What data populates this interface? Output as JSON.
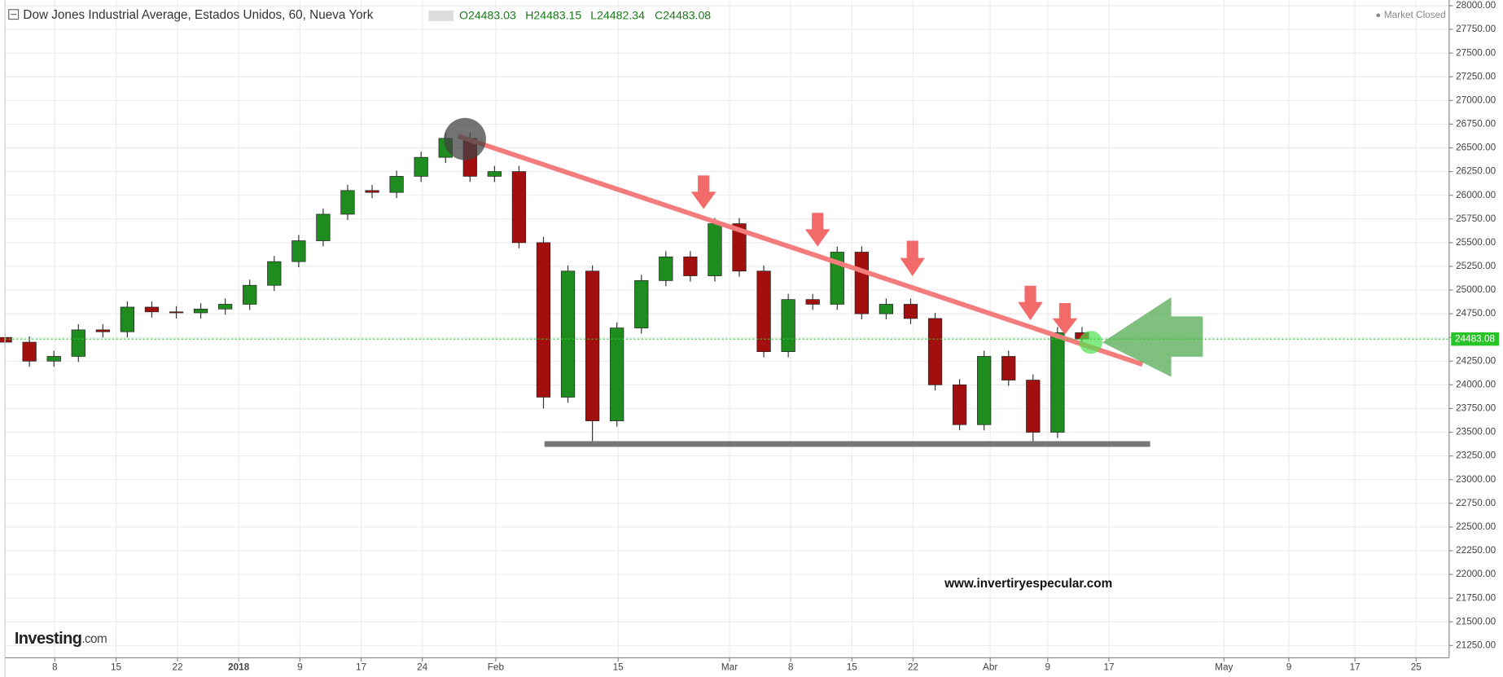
{
  "chart_data": {
    "type": "candlestick",
    "title": "Dow Jones Industrial Average, Estados Unidos, 60, Nueva York",
    "ohlc_labels": [
      "O24483.03",
      "H24483.15",
      "L24482.34",
      "C24483.08"
    ],
    "status": "Market Closed",
    "watermark": "www.invertiryespecular.com",
    "logo": "Investing",
    "logo_suffix": ".com",
    "current_price": 24483.08,
    "current_price_label": "24483.08",
    "up_color": "#1e8c1e",
    "down_color": "#a30f0f",
    "grid": true,
    "x": [
      0,
      2,
      4,
      6,
      8,
      10,
      12,
      14,
      16,
      18,
      20,
      22,
      24,
      26,
      28,
      30,
      32,
      34,
      36,
      38,
      40,
      42,
      44,
      46,
      48,
      50,
      52,
      54,
      56,
      58,
      60,
      62,
      64,
      66,
      68,
      70,
      72,
      74,
      76,
      78,
      80,
      82,
      84,
      86,
      88
    ],
    "open": [
      24500,
      24450,
      24250,
      24300,
      24580,
      24560,
      24820,
      24770,
      24760,
      24800,
      24850,
      25050,
      25300,
      25520,
      25800,
      26050,
      26030,
      26200,
      26400,
      26600,
      26200,
      26250,
      25500,
      23870,
      25200,
      23620,
      24600,
      25100,
      25350,
      25150,
      25700,
      25200,
      24350,
      24900,
      24850,
      25400,
      24750,
      24850,
      24700,
      24000,
      23580,
      24300,
      24050,
      23500,
      24550
    ],
    "high": [
      24560,
      24510,
      24360,
      24640,
      24640,
      24880,
      24880,
      24830,
      24860,
      24910,
      25110,
      25360,
      25580,
      25860,
      26110,
      26110,
      26260,
      26460,
      26660,
      26660,
      26310,
      26310,
      25560,
      25260,
      25260,
      24660,
      25160,
      25410,
      25410,
      25760,
      25760,
      25260,
      24960,
      24960,
      25460,
      25460,
      24910,
      24910,
      24760,
      24060,
      24360,
      24360,
      24110,
      24610,
      24610
    ],
    "low": [
      24390,
      24190,
      24190,
      24240,
      24500,
      24500,
      24710,
      24700,
      24700,
      24740,
      24790,
      24990,
      25240,
      25460,
      25740,
      25970,
      25970,
      26140,
      26340,
      26140,
      26140,
      25440,
      23750,
      23810,
      23380,
      23560,
      24540,
      25040,
      25090,
      25090,
      25140,
      24290,
      24290,
      24790,
      24790,
      24690,
      24690,
      24640,
      23940,
      23520,
      23520,
      23990,
      23400,
      23440,
      24420
    ],
    "close": [
      24450,
      24250,
      24300,
      24580,
      24560,
      24820,
      24770,
      24760,
      24800,
      24850,
      25050,
      25300,
      25520,
      25800,
      26050,
      26030,
      26200,
      26400,
      26600,
      26200,
      26250,
      25500,
      23870,
      25200,
      23620,
      24600,
      25100,
      25350,
      25150,
      25700,
      25200,
      24350,
      24900,
      24850,
      25400,
      24750,
      24850,
      24700,
      24000,
      23580,
      24300,
      24050,
      23500,
      24550,
      24483
    ],
    "xlim": [
      0,
      118
    ],
    "xticks": [
      {
        "value": 4.07,
        "label": "8"
      },
      {
        "value": 9.08,
        "label": "15"
      },
      {
        "value": 14.1,
        "label": "22"
      },
      {
        "value": 19.1,
        "label": "2018"
      },
      {
        "value": 24.1,
        "label": "9"
      },
      {
        "value": 29.1,
        "label": "17"
      },
      {
        "value": 34.1,
        "label": "24"
      },
      {
        "value": 40.1,
        "label": "Feb"
      },
      {
        "value": 50.1,
        "label": "15"
      },
      {
        "value": 59.2,
        "label": "Mar"
      },
      {
        "value": 64.2,
        "label": "8"
      },
      {
        "value": 69.2,
        "label": "15"
      },
      {
        "value": 74.2,
        "label": "22"
      },
      {
        "value": 80.5,
        "label": "Abr"
      },
      {
        "value": 85.2,
        "label": "9"
      },
      {
        "value": 90.2,
        "label": "17"
      },
      {
        "value": 99.6,
        "label": "May"
      },
      {
        "value": 104.9,
        "label": "9"
      },
      {
        "value": 110.3,
        "label": "17"
      },
      {
        "value": 115.3,
        "label": "25"
      }
    ],
    "ylim": [
      21120,
      28060
    ],
    "yticks": [
      {
        "value": 21250,
        "label": "21250.00"
      },
      {
        "value": 21500,
        "label": "21500.00"
      },
      {
        "value": 21750,
        "label": "21750.00"
      },
      {
        "value": 22000,
        "label": "22000.00"
      },
      {
        "value": 22250,
        "label": "22250.00"
      },
      {
        "value": 22500,
        "label": "22500.00"
      },
      {
        "value": 22750,
        "label": "22750.00"
      },
      {
        "value": 23000,
        "label": "23000.00"
      },
      {
        "value": 23250,
        "label": "23250.00"
      },
      {
        "value": 23500,
        "label": "23500.00"
      },
      {
        "value": 23750,
        "label": "23750.00"
      },
      {
        "value": 24000,
        "label": "24000.00"
      },
      {
        "value": 24250,
        "label": "24250.00"
      },
      {
        "value": 24500,
        "label": "24500.00"
      },
      {
        "value": 24750,
        "label": "24750.00"
      },
      {
        "value": 25000,
        "label": "25000.00"
      },
      {
        "value": 25250,
        "label": "25250.00"
      },
      {
        "value": 25500,
        "label": "25500.00"
      },
      {
        "value": 25750,
        "label": "25750.00"
      },
      {
        "value": 26000,
        "label": "26000.00"
      },
      {
        "value": 26250,
        "label": "26250.00"
      },
      {
        "value": 26500,
        "label": "26500.00"
      },
      {
        "value": 26750,
        "label": "26750.00"
      },
      {
        "value": 27000,
        "label": "27000.00"
      },
      {
        "value": 27250,
        "label": "27250.00"
      },
      {
        "value": 27500,
        "label": "27500.00"
      },
      {
        "value": 27750,
        "label": "27750.00"
      },
      {
        "value": 28000,
        "label": "28000.00"
      }
    ]
  }
}
